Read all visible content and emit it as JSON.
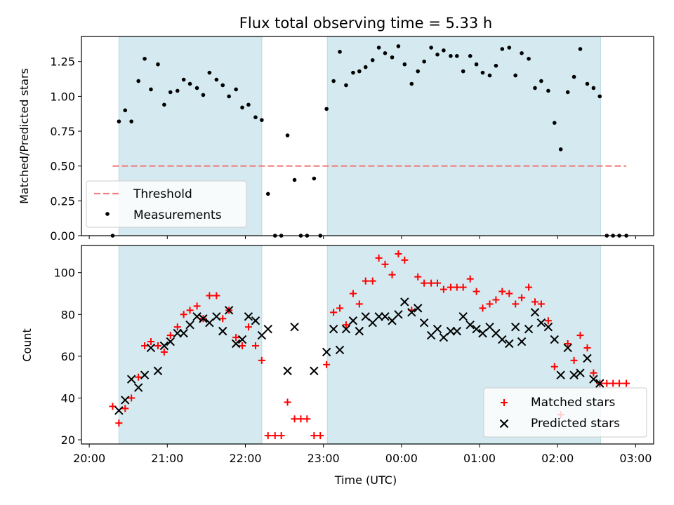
{
  "chart_data": [
    {
      "type": "scatter",
      "title": "Flux total observing time = 5.33 h",
      "xlabel": "",
      "ylabel": "Matched/Predicted stars",
      "ylim": [
        0,
        1.43
      ],
      "yticks": [
        "0.00",
        "0.25",
        "0.50",
        "0.75",
        "1.00",
        "1.25"
      ],
      "ytick_values": [
        0,
        0.25,
        0.5,
        0.75,
        1.0,
        1.25
      ],
      "xaxis_unit": "hours since 20:00 UTC",
      "xlim_hours": [
        -0.1,
        7.23
      ],
      "shaded_intervals_hours": [
        [
          0.38,
          2.21
        ],
        [
          3.05,
          6.55
        ]
      ],
      "shade_color": "#d4eaf0",
      "threshold": {
        "name": "Threshold",
        "value": 0.5,
        "x_from_hours": 0.3,
        "x_to_hours": 6.88,
        "color": "#f08080"
      },
      "series": [
        {
          "name": "Measurements",
          "color": "#000000",
          "marker": "dot",
          "x_hours": [
            0.3,
            0.38,
            0.46,
            0.54,
            0.63,
            0.71,
            0.79,
            0.88,
            0.96,
            1.04,
            1.13,
            1.21,
            1.29,
            1.38,
            1.46,
            1.54,
            1.63,
            1.71,
            1.79,
            1.88,
            1.96,
            2.04,
            2.13,
            2.21,
            2.29,
            2.38,
            2.46,
            2.54,
            2.63,
            2.71,
            2.79,
            2.88,
            2.96,
            3.04,
            3.13,
            3.21,
            3.29,
            3.38,
            3.46,
            3.54,
            3.63,
            3.71,
            3.79,
            3.88,
            3.96,
            4.04,
            4.13,
            4.21,
            4.29,
            4.38,
            4.46,
            4.54,
            4.63,
            4.71,
            4.79,
            4.88,
            4.96,
            5.04,
            5.13,
            5.21,
            5.29,
            5.38,
            5.46,
            5.54,
            5.63,
            5.71,
            5.79,
            5.88,
            5.96,
            6.04,
            6.13,
            6.21,
            6.29,
            6.38,
            6.46,
            6.54,
            6.63,
            6.71,
            6.79,
            6.88
          ],
          "y": [
            0.0,
            0.82,
            0.9,
            0.82,
            1.11,
            1.27,
            1.05,
            1.23,
            0.94,
            1.03,
            1.04,
            1.12,
            1.09,
            1.06,
            1.01,
            1.17,
            1.12,
            1.08,
            1.0,
            1.05,
            0.92,
            0.94,
            0.85,
            0.83,
            0.3,
            0.0,
            0.0,
            0.72,
            0.4,
            0.0,
            0.0,
            0.41,
            0.0,
            0.91,
            1.11,
            1.32,
            1.08,
            1.17,
            1.18,
            1.21,
            1.26,
            1.35,
            1.31,
            1.28,
            1.36,
            1.23,
            1.09,
            1.18,
            1.25,
            1.35,
            1.3,
            1.33,
            1.29,
            1.29,
            1.18,
            1.29,
            1.23,
            1.17,
            1.15,
            1.22,
            1.34,
            1.35,
            1.15,
            1.31,
            1.27,
            1.06,
            1.11,
            1.04,
            0.81,
            0.62,
            1.03,
            1.14,
            1.34,
            1.09,
            1.06,
            1.0,
            0.0,
            0.0,
            0.0,
            0.0
          ]
        }
      ],
      "legend": {
        "placement": "lower-left",
        "entries": [
          "Threshold",
          "Measurements"
        ]
      }
    },
    {
      "type": "scatter",
      "title": "",
      "xlabel": "Time (UTC)",
      "ylabel": "Count",
      "ylim": [
        18,
        113
      ],
      "yticks": [
        "20",
        "40",
        "60",
        "80",
        "100"
      ],
      "ytick_values": [
        20,
        40,
        60,
        80,
        100
      ],
      "xticks": [
        "20:00",
        "21:00",
        "22:00",
        "23:00",
        "00:00",
        "01:00",
        "02:00",
        "03:00"
      ],
      "xtick_hours": [
        0,
        1,
        2,
        3,
        4,
        5,
        6,
        7
      ],
      "xaxis_unit": "hours since 20:00 UTC",
      "xlim_hours": [
        -0.1,
        7.23
      ],
      "shaded_intervals_hours": [
        [
          0.38,
          2.21
        ],
        [
          3.05,
          6.55
        ]
      ],
      "shade_color": "#d4eaf0",
      "series": [
        {
          "name": "Matched stars",
          "color": "#ff0000",
          "marker": "plus",
          "x_hours": [
            0.3,
            0.38,
            0.46,
            0.54,
            0.63,
            0.71,
            0.79,
            0.88,
            0.96,
            1.04,
            1.13,
            1.21,
            1.29,
            1.38,
            1.46,
            1.54,
            1.63,
            1.71,
            1.79,
            1.88,
            1.96,
            2.04,
            2.13,
            2.21,
            2.29,
            2.38,
            2.46,
            2.54,
            2.63,
            2.71,
            2.79,
            2.88,
            2.96,
            3.04,
            3.13,
            3.21,
            3.29,
            3.38,
            3.46,
            3.54,
            3.63,
            3.71,
            3.79,
            3.88,
            3.96,
            4.04,
            4.13,
            4.21,
            4.29,
            4.38,
            4.46,
            4.54,
            4.63,
            4.71,
            4.79,
            4.88,
            4.96,
            5.04,
            5.13,
            5.21,
            5.29,
            5.38,
            5.46,
            5.54,
            5.63,
            5.71,
            5.79,
            5.88,
            5.96,
            6.04,
            6.13,
            6.21,
            6.29,
            6.38,
            6.46,
            6.54,
            6.63,
            6.71,
            6.79,
            6.88
          ],
          "y": [
            36,
            28,
            35,
            40,
            50,
            65,
            67,
            65,
            62,
            70,
            74,
            80,
            82,
            84,
            78,
            89,
            89,
            78,
            82,
            69,
            65,
            74,
            65,
            58,
            22,
            22,
            22,
            38,
            30,
            30,
            30,
            22,
            22,
            56,
            81,
            83,
            75,
            90,
            85,
            96,
            96,
            107,
            104,
            99,
            109,
            106,
            82,
            98,
            95,
            95,
            95,
            92,
            93,
            93,
            93,
            97,
            91,
            83,
            85,
            87,
            91,
            90,
            85,
            88,
            93,
            86,
            85,
            77,
            55,
            32,
            66,
            58,
            70,
            64,
            52,
            47,
            47,
            47,
            47,
            47
          ]
        },
        {
          "name": "Predicted stars",
          "color": "#000000",
          "marker": "x",
          "x_hours": [
            0.38,
            0.46,
            0.54,
            0.63,
            0.71,
            0.79,
            0.88,
            0.96,
            1.04,
            1.13,
            1.21,
            1.29,
            1.38,
            1.46,
            1.54,
            1.63,
            1.71,
            1.79,
            1.88,
            1.96,
            2.04,
            2.13,
            2.21,
            2.29,
            2.54,
            2.63,
            2.88,
            3.04,
            3.13,
            3.21,
            3.29,
            3.38,
            3.46,
            3.54,
            3.63,
            3.71,
            3.79,
            3.88,
            3.96,
            4.04,
            4.13,
            4.21,
            4.29,
            4.38,
            4.46,
            4.54,
            4.63,
            4.71,
            4.79,
            4.88,
            4.96,
            5.04,
            5.13,
            5.21,
            5.29,
            5.38,
            5.46,
            5.54,
            5.63,
            5.71,
            5.79,
            5.88,
            5.96,
            6.04,
            6.13,
            6.21,
            6.29,
            6.38,
            6.46,
            6.54
          ],
          "y": [
            34,
            39,
            49,
            45,
            51,
            64,
            53,
            65,
            67,
            71,
            71,
            75,
            79,
            78,
            76,
            79,
            72,
            82,
            66,
            68,
            79,
            77,
            70,
            73,
            53,
            74,
            53,
            62,
            73,
            63,
            73,
            77,
            72,
            79,
            76,
            79,
            79,
            77,
            80,
            86,
            81,
            83,
            76,
            70,
            73,
            69,
            72,
            72,
            79,
            75,
            73,
            71,
            74,
            71,
            68,
            66,
            74,
            67,
            73,
            81,
            76,
            74,
            68,
            51,
            64,
            51,
            52,
            59,
            49,
            47
          ]
        }
      ],
      "legend": {
        "placement": "lower-right",
        "entries": [
          "Matched stars",
          "Predicted stars"
        ]
      }
    }
  ]
}
